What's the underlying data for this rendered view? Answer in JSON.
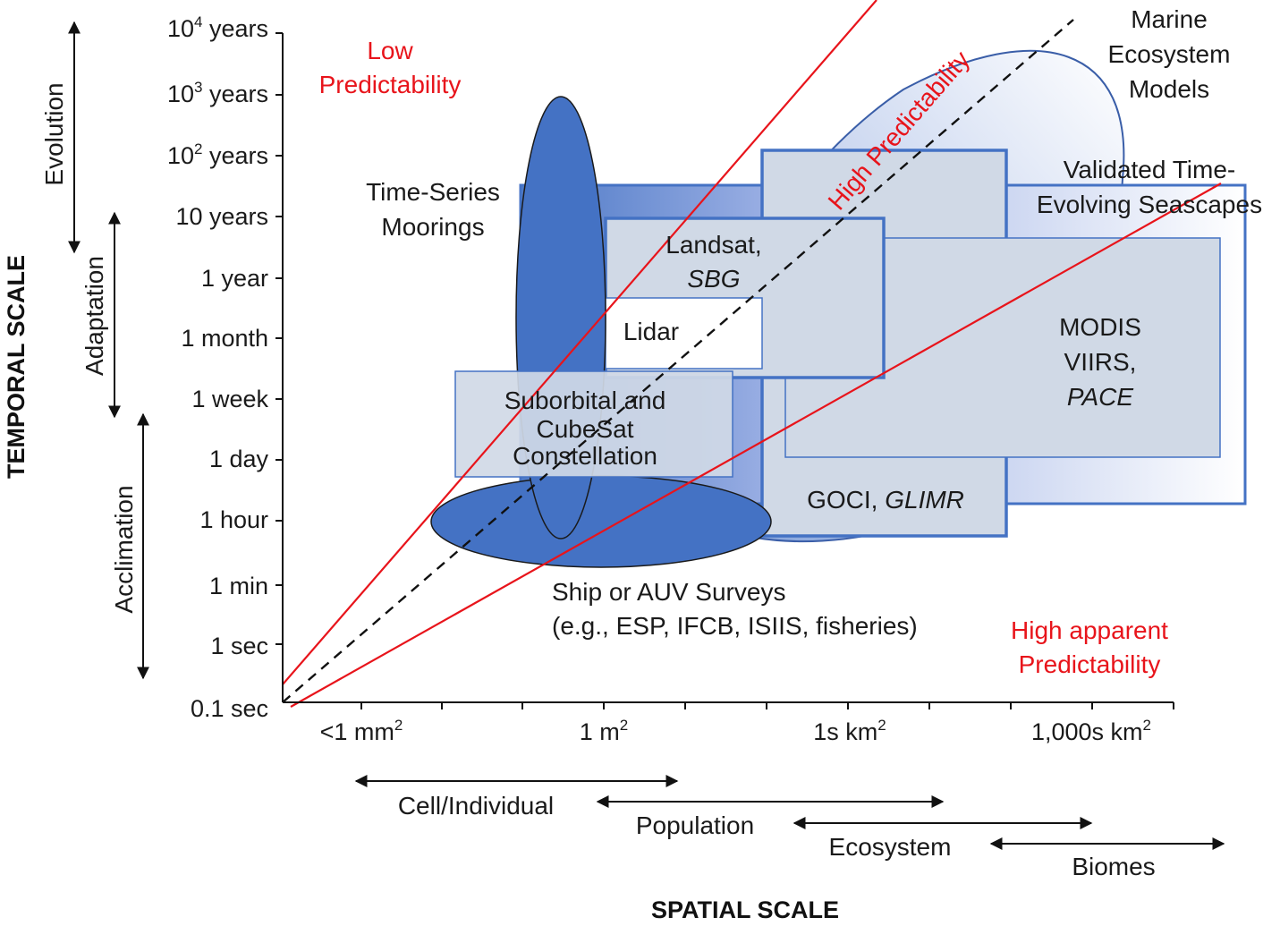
{
  "axes": {
    "y_title": "TEMPORAL SCALE",
    "x_title": "SPATIAL SCALE",
    "y_ticks": [
      {
        "main": "10",
        "sup": "4",
        "rest": " years"
      },
      {
        "main": "10",
        "sup": "3",
        "rest": " years"
      },
      {
        "main": "10",
        "sup": "2",
        "rest": " years"
      },
      {
        "main": "10 years",
        "sup": "",
        "rest": ""
      },
      {
        "main": "1 year",
        "sup": "",
        "rest": ""
      },
      {
        "main": "1 month",
        "sup": "",
        "rest": ""
      },
      {
        "main": "1 week",
        "sup": "",
        "rest": ""
      },
      {
        "main": "1 day",
        "sup": "",
        "rest": ""
      },
      {
        "main": "1 hour",
        "sup": "",
        "rest": ""
      },
      {
        "main": "1 min",
        "sup": "",
        "rest": ""
      },
      {
        "main": "1 sec",
        "sup": "",
        "rest": ""
      },
      {
        "main": "0.1 sec",
        "sup": "",
        "rest": ""
      }
    ],
    "x_ticks": [
      {
        "main": "<1 mm",
        "sup": "2"
      },
      {
        "main": "1 m",
        "sup": "2"
      },
      {
        "main": "1s km",
        "sup": "2"
      },
      {
        "main": "1,000s km",
        "sup": "2"
      }
    ]
  },
  "temporal_processes": [
    "Evolution",
    "Adaptation",
    "Acclimation"
  ],
  "spatial_processes": [
    "Cell/Individual",
    "Population",
    "Ecosystem",
    "Biomes"
  ],
  "regions": {
    "marine_models": [
      "Marine",
      "Ecosystem",
      "Models"
    ],
    "validated_seascapes": [
      "Validated Time-",
      "Evolving Seascapes"
    ],
    "moorings": [
      "Time-Series",
      "Moorings"
    ],
    "landsat": [
      "Landsat,",
      "SBG"
    ],
    "lidar": "Lidar",
    "suborbital": [
      "Suborbital and",
      "CubeSat",
      "Constellation"
    ],
    "modis": [
      "MODIS",
      "VIIRS,",
      "PACE"
    ],
    "goci_a": "GOCI, ",
    "goci_b": "GLIMR",
    "ship": [
      "Ship or AUV Surveys",
      "(e.g., ESP, IFCB, ISIIS, fisheries)"
    ]
  },
  "predictability": {
    "low": [
      "Low",
      "Predictability"
    ],
    "high": "High Predictability",
    "apparent": [
      "High apparent",
      "Predictability"
    ]
  },
  "colors": {
    "accent_blue": "#4472c4",
    "box_fill": "#d0d9e6",
    "red_line": "#e8141b"
  }
}
